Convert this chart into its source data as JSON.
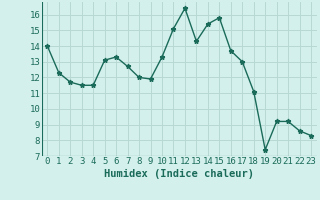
{
  "x": [
    0,
    1,
    2,
    3,
    4,
    5,
    6,
    7,
    8,
    9,
    10,
    11,
    12,
    13,
    14,
    15,
    16,
    17,
    18,
    19,
    20,
    21,
    22,
    23
  ],
  "y": [
    14.0,
    12.3,
    11.7,
    11.5,
    11.5,
    13.1,
    13.3,
    12.7,
    12.0,
    11.9,
    13.3,
    15.1,
    16.4,
    14.3,
    15.4,
    15.8,
    13.7,
    13.0,
    11.1,
    7.4,
    9.2,
    9.2,
    8.6,
    8.3
  ],
  "line_color": "#1a6b5a",
  "marker": "*",
  "marker_size": 3.5,
  "bg_color": "#d4f0ec",
  "grid_color": "#b8d8d4",
  "xlabel": "Humidex (Indice chaleur)",
  "xlim": [
    -0.5,
    23.5
  ],
  "ylim": [
    7,
    16.8
  ],
  "yticks": [
    7,
    8,
    9,
    10,
    11,
    12,
    13,
    14,
    15,
    16
  ],
  "xticks": [
    0,
    1,
    2,
    3,
    4,
    5,
    6,
    7,
    8,
    9,
    10,
    11,
    12,
    13,
    14,
    15,
    16,
    17,
    18,
    19,
    20,
    21,
    22,
    23
  ],
  "tick_label_fontsize": 6.5,
  "xlabel_fontsize": 7.5,
  "line_width": 1.0
}
